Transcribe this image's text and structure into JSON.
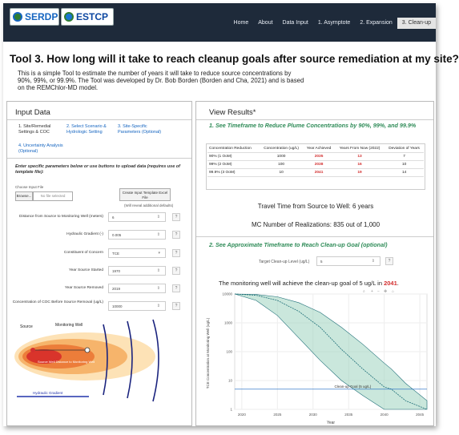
{
  "nav": {
    "logo1": "SERDP",
    "logo2": "ESTCP",
    "items": [
      "Home",
      "About",
      "Data Input",
      "1. Asymptote",
      "2. Expansion",
      "3. Clean-up"
    ],
    "active_index": 5
  },
  "header": {
    "title": "Tool 3. How long will it take to reach cleanup goals after source remediation at my site?",
    "intro": "This is a simple Tool to estimate the number of years it will take to reduce source concentrations by 90%, 99%, or 99.9%. The Tool was developed by Dr. Bob Borden (Borden and Cha, 2021) and is based on the REMChlor-MD model."
  },
  "input": {
    "heading": "Input Data",
    "tabs": [
      "1. Site/Remedial Settings & COC",
      "2. Select Scenario & Hydrologic Setting",
      "3. Site-Specific Parameters (Optional)",
      "4. Uncertainty Analysis (Optional)"
    ],
    "instructions": "Enter specific parameters below or use buttons to upload data (requires use of template file):",
    "choose_label": "Choose Input File",
    "browse": "Browse...",
    "no_file": "No file selected",
    "create_btn": "Create Input Template Excel File",
    "note": "(Will reveal additional defaults)",
    "fields": [
      {
        "label": "Distance from Source to Monitoring Well (meters)",
        "value": "6"
      },
      {
        "label": "Hydraulic Gradient (-)",
        "value": "0.005"
      },
      {
        "label": "Constituent of Concern",
        "value": "TCE"
      },
      {
        "label": "Year Source Started",
        "value": "1970"
      },
      {
        "label": "Year Source Removed",
        "value": "2019"
      },
      {
        "label": "Concentration of COC Before Source Removal (ug/L)",
        "value": "10000"
      }
    ],
    "plume_labels": {
      "source": "Source",
      "well": "Monitoring Well",
      "distance": "Source Well Distance to Monitoring Well",
      "width": "Hydraulic Gradient"
    }
  },
  "results": {
    "heading": "View Results*",
    "section1": "1. See Timeframe to Reduce Plume Concentrations by 90%, 99%, and 99.9%",
    "table": {
      "headers": [
        "Concentration Reduction",
        "Concentration (ug/L)",
        "Year Achieved",
        "Years From Now (2022)",
        "Deviation of Years"
      ],
      "rows": [
        [
          "90% (1 OoM)",
          "1000",
          "2035",
          "13",
          "7"
        ],
        [
          "99% (2 OoM)",
          "100",
          "2038",
          "16",
          "10"
        ],
        [
          "99.9% (3 OoM)",
          "10",
          "2041",
          "19",
          "14"
        ]
      ]
    },
    "travel_time": "Travel Time from Source to Well: 6 years",
    "realizations": "MC Number of Realizations: 835 out of 1,000",
    "section2": "2. See Approximate Timeframe to Reach Clean-up Goal (optional)",
    "target_label": "Target Clean-up Level (ug/L)",
    "target_value": "5",
    "goal_prefix": "The monitoring well will achieve the clean-up goal of 5 ug/L in ",
    "goal_year": "2041",
    "goal_suffix": "."
  },
  "chart_data": {
    "type": "area",
    "title": "",
    "xlabel": "Year",
    "ylabel": "TCE Concentration at Monitoring Well (ug/L)",
    "annotation": "Clean-up Goal (5 ug/L)",
    "x": [
      2019,
      2022,
      2025,
      2028,
      2031,
      2034,
      2037,
      2040,
      2041,
      2043,
      2046
    ],
    "series": [
      {
        "values": [
          10000,
          9000,
          6000,
          2500,
          700,
          120,
          25,
          6,
          5,
          2,
          1
        ]
      },
      {
        "values": [
          10000,
          9600,
          8000,
          5000,
          2300,
          700,
          180,
          40,
          25,
          8,
          2
        ]
      },
      {
        "values": [
          10000,
          6000,
          1800,
          300,
          50,
          10,
          3,
          1,
          1,
          1,
          1
        ]
      }
    ],
    "ylim": [
      1,
      10000
    ],
    "xlim": [
      2019,
      2046
    ],
    "log_y": true,
    "colors": {
      "band": "#9fd3bf",
      "median": "#1f6f78",
      "goal": "#1565c0"
    }
  }
}
